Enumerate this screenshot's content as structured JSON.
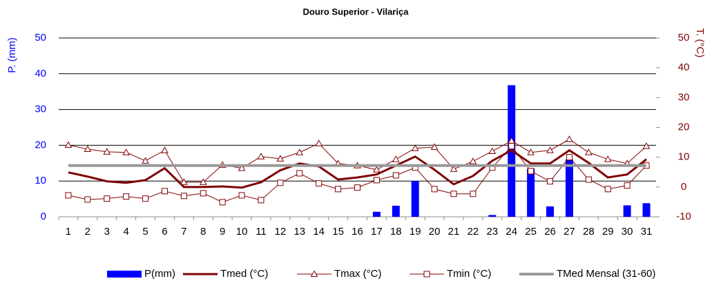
{
  "chart_data": {
    "type": "combo",
    "title": "Douro Superior - Vilariça",
    "y_label": "P. (mm)",
    "y2_label": "T. (°C)",
    "categories": [
      "1",
      "2",
      "3",
      "4",
      "5",
      "6",
      "7",
      "8",
      "9",
      "10",
      "11",
      "12",
      "13",
      "14",
      "15",
      "16",
      "17",
      "18",
      "19",
      "20",
      "21",
      "22",
      "23",
      "24",
      "25",
      "26",
      "27",
      "28",
      "29",
      "30",
      "31"
    ],
    "ylim": [
      0,
      50
    ],
    "yticks": [
      0,
      10,
      20,
      30,
      40,
      50
    ],
    "y2lim": [
      -10,
      50
    ],
    "y2ticks": [
      -10,
      0,
      10,
      20,
      30,
      40,
      50
    ],
    "grid": true,
    "legend": "bottom",
    "series": [
      {
        "name": "P(mm)",
        "type": "bar",
        "color": "#0000ff",
        "axis": "y",
        "values": [
          0,
          0,
          0,
          0,
          0,
          0,
          0,
          0,
          0,
          0,
          0,
          0,
          0,
          0,
          0,
          0,
          1.4,
          3.1,
          10,
          0,
          0,
          0,
          0.5,
          36.8,
          13.5,
          2.9,
          16,
          0,
          0,
          3.2,
          3.8
        ]
      },
      {
        "name": "Tmed (°C)",
        "type": "line",
        "color": "#800000",
        "axis": "y2",
        "width": 3,
        "marker": "none",
        "values": [
          4.9,
          3.5,
          1.9,
          1.4,
          2.3,
          6.3,
          0,
          0,
          0.2,
          -0.2,
          1.6,
          5.6,
          7.9,
          6.9,
          2.5,
          3.2,
          4.2,
          7.2,
          10.2,
          5.8,
          0.9,
          3.7,
          8.8,
          12.3,
          7.9,
          7.9,
          12.3,
          8.1,
          3.2,
          4.2,
          9.3
        ]
      },
      {
        "name": "Tmax (°C)",
        "type": "line",
        "color": "#800000",
        "axis": "y2",
        "width": 1,
        "marker": "triangle",
        "values": [
          14.1,
          12.7,
          11.8,
          11.6,
          8.8,
          12.3,
          1.6,
          1.6,
          7.4,
          6.3,
          10.2,
          9.5,
          11.6,
          14.6,
          7.9,
          7.2,
          5.8,
          9.3,
          13,
          13.4,
          6,
          8.6,
          12,
          15.5,
          11.6,
          12.3,
          16,
          11.6,
          9.3,
          7.9,
          13.7
        ]
      },
      {
        "name": "Tmin (°C)",
        "type": "line",
        "color": "#800000",
        "axis": "y2",
        "width": 1,
        "marker": "square",
        "values": [
          -2.8,
          -4.2,
          -3.9,
          -3.2,
          -3.9,
          -1.4,
          -3,
          -2.1,
          -5.1,
          -2.8,
          -4.4,
          1.4,
          4.6,
          1.2,
          -0.7,
          -0.2,
          2.3,
          3.9,
          6.5,
          -0.7,
          -2.3,
          -2.3,
          6.5,
          13.7,
          5.3,
          1.9,
          10,
          2.5,
          -0.7,
          0.5,
          7.2
        ]
      },
      {
        "name": "TMed Mensal (31-60)",
        "type": "line",
        "color": "#999999",
        "axis": "y2",
        "width": 4,
        "marker": "none",
        "values": [
          7.2,
          7.2,
          7.2,
          7.2,
          7.2,
          7.2,
          7.2,
          7.2,
          7.2,
          7.2,
          7.2,
          7.2,
          7.2,
          7.2,
          7.2,
          7.2,
          7.2,
          7.2,
          7.2,
          7.2,
          7.2,
          7.2,
          7.2,
          7.2,
          7.2,
          7.2,
          7.2,
          7.2,
          7.2,
          7.2,
          7.2
        ]
      }
    ]
  }
}
